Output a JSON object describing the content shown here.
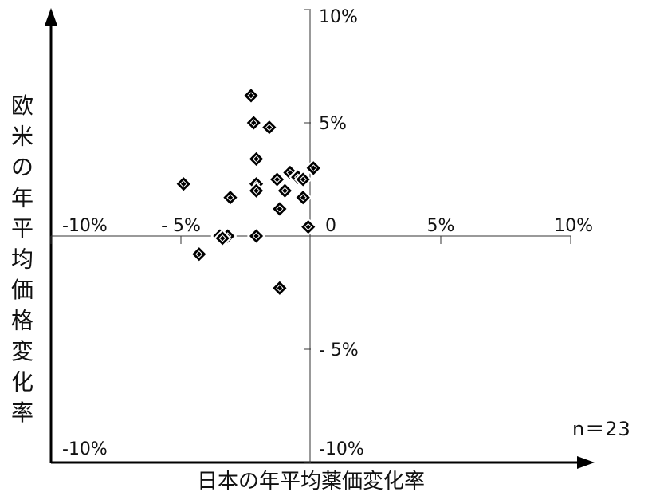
{
  "chart_data": {
    "type": "scatter",
    "title": "",
    "xlabel": "日本の年平均薬価変化率",
    "ylabel": "欧米の年平均価格変化率",
    "xlim": [
      -10,
      10
    ],
    "ylim": [
      -10,
      10
    ],
    "x_ticks": [
      {
        "value": -10,
        "label": "-10%"
      },
      {
        "value": -5,
        "label": "- 5%"
      },
      {
        "value": 0,
        "label": "0"
      },
      {
        "value": 5,
        "label": "5%"
      },
      {
        "value": 10,
        "label": "10%"
      }
    ],
    "y_ticks": [
      {
        "value": 10,
        "label": "10%"
      },
      {
        "value": 5,
        "label": "5%"
      },
      {
        "value": -5,
        "label": "- 5%"
      },
      {
        "value": -10,
        "label": "-10%"
      }
    ],
    "annotation": "n＝23",
    "marker": "diamond",
    "marker_color": "#000000",
    "grid": false,
    "points": [
      {
        "x": -2.3,
        "y": 6.2
      },
      {
        "x": -2.2,
        "y": 5.0
      },
      {
        "x": -1.6,
        "y": 4.8
      },
      {
        "x": -2.1,
        "y": 3.4
      },
      {
        "x": -4.9,
        "y": 2.3
      },
      {
        "x": -2.1,
        "y": 2.3
      },
      {
        "x": -2.1,
        "y": 2.0
      },
      {
        "x": -3.1,
        "y": 1.7
      },
      {
        "x": -1.3,
        "y": 2.5
      },
      {
        "x": -0.8,
        "y": 2.8
      },
      {
        "x": -0.5,
        "y": 2.6
      },
      {
        "x": -0.3,
        "y": 2.5
      },
      {
        "x": 0.1,
        "y": 3.0
      },
      {
        "x": -1.0,
        "y": 2.0
      },
      {
        "x": -0.3,
        "y": 1.7
      },
      {
        "x": -1.2,
        "y": 1.2
      },
      {
        "x": -0.1,
        "y": 0.4
      },
      {
        "x": -3.5,
        "y": 0.0
      },
      {
        "x": -3.2,
        "y": 0.0
      },
      {
        "x": -2.1,
        "y": 0.0
      },
      {
        "x": -4.3,
        "y": -0.8
      },
      {
        "x": -1.2,
        "y": -2.3
      },
      {
        "x": -3.4,
        "y": -0.1
      }
    ]
  }
}
